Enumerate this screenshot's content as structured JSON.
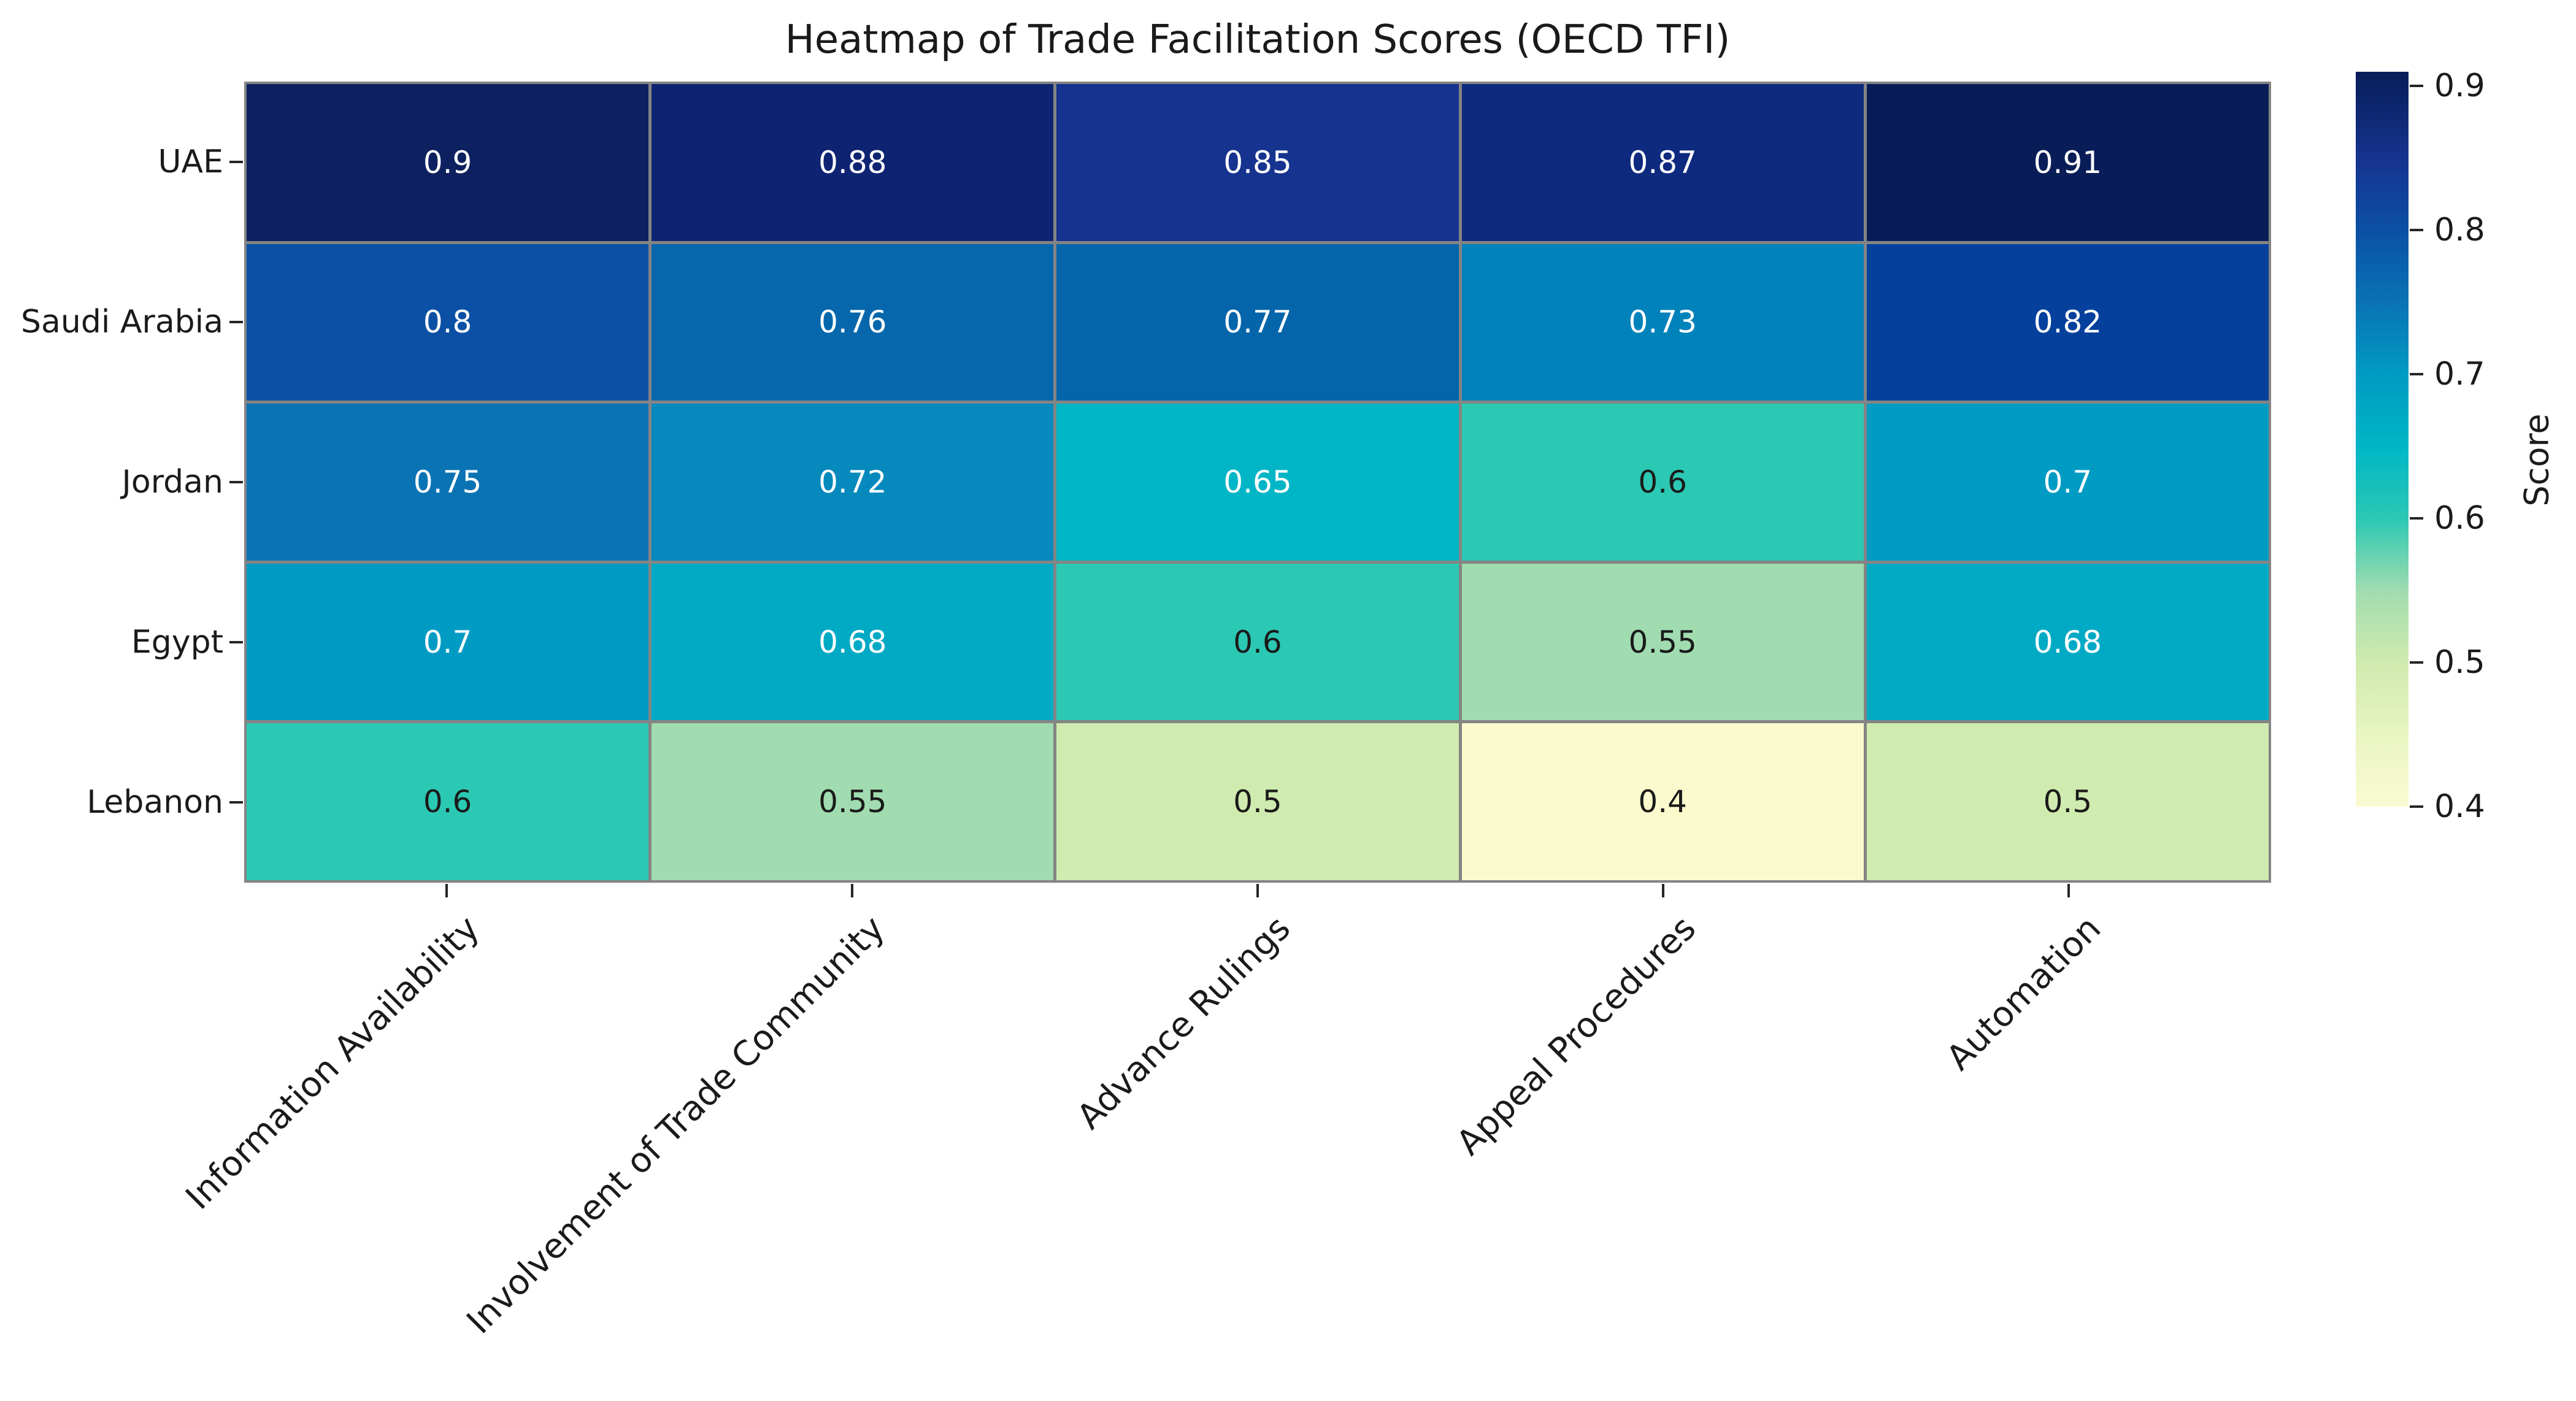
{
  "figure": {
    "title": "Heatmap of Trade Facilitation Scores (OECD TFI)"
  },
  "chart_data": {
    "type": "heatmap",
    "title": "Heatmap of Trade Facilitation Scores (OECD TFI)",
    "x_categories": [
      "Information Availability",
      "Involvement of Trade Community",
      "Advance Rulings",
      "Appeal Procedures",
      "Automation"
    ],
    "y_categories": [
      "UAE",
      "Saudi Arabia",
      "Jordan",
      "Egypt",
      "Lebanon"
    ],
    "values": [
      [
        0.9,
        0.88,
        0.85,
        0.87,
        0.91
      ],
      [
        0.8,
        0.76,
        0.77,
        0.73,
        0.82
      ],
      [
        0.75,
        0.72,
        0.65,
        0.6,
        0.7
      ],
      [
        0.7,
        0.68,
        0.6,
        0.55,
        0.68
      ],
      [
        0.6,
        0.55,
        0.5,
        0.4,
        0.5
      ]
    ],
    "annotations_shown": true,
    "colormap": "YlGnBu",
    "grid_line_color": "#848484",
    "background": "#ffffff",
    "annotation_dark_text_color": "#1a1a1a",
    "annotation_light_text_color": "#ffffff",
    "value_color_map": {
      "0.4": "#fafacd",
      "0.5": "#d0ebaf",
      "0.55": "#a0dcaf",
      "0.6": "#2bc8b4",
      "0.65": "#00b6c6",
      "0.68": "#00aac4",
      "0.7": "#009bc3",
      "0.72": "#0689bd",
      "0.73": "#0082ba",
      "0.75": "#0a73b4",
      "0.76": "#0667ac",
      "0.77": "#0565aa",
      "0.8": "#0b50a4",
      "0.82": "#04409c",
      "0.85": "#16338f",
      "0.87": "#0e2a7e",
      "0.88": "#0e2472",
      "0.9": "#0d205f",
      "0.91": "#081d58"
    },
    "colorbar": {
      "label": "Score",
      "tick_labels": [
        "0.9",
        "0.8",
        "0.7",
        "0.6",
        "0.5",
        "0.4"
      ],
      "vmin": 0.4,
      "vmax": 0.91,
      "gradient_stops": [
        {
          "value": 0.4,
          "color": "#fbfbd4"
        },
        {
          "value": 0.45,
          "color": "#e9f5c1"
        },
        {
          "value": 0.5,
          "color": "#d0ebaf"
        },
        {
          "value": 0.55,
          "color": "#a0dcaf"
        },
        {
          "value": 0.6,
          "color": "#2bc8b4"
        },
        {
          "value": 0.65,
          "color": "#00b6c6"
        },
        {
          "value": 0.7,
          "color": "#009bc3"
        },
        {
          "value": 0.75,
          "color": "#0a73b4"
        },
        {
          "value": 0.8,
          "color": "#0b50a4"
        },
        {
          "value": 0.85,
          "color": "#16338f"
        },
        {
          "value": 0.91,
          "color": "#081d58"
        }
      ]
    }
  }
}
